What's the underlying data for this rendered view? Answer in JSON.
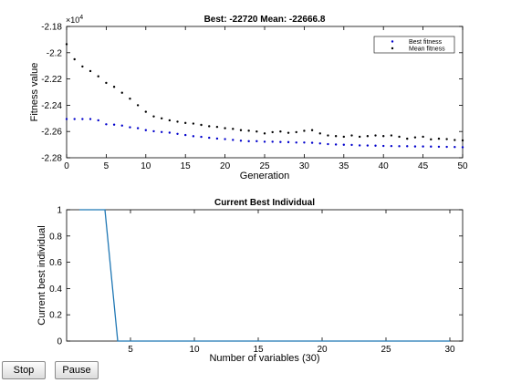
{
  "window": {
    "buttons": {
      "stop_label": "Stop",
      "pause_label": "Pause"
    }
  },
  "chart_data": [
    {
      "type": "scatter",
      "title": "Best: -22720 Mean: -22666.8",
      "xlabel": "Generation",
      "ylabel": "Fitness value",
      "y_multiplier_label": "×10",
      "y_multiplier_exp": "4",
      "xlim": [
        0,
        50
      ],
      "ylim": [
        -2.28,
        -2.18
      ],
      "xticks": [
        "0",
        "5",
        "10",
        "15",
        "20",
        "25",
        "30",
        "35",
        "40",
        "45",
        "50"
      ],
      "yticks": [
        "-2.18",
        "-2.2",
        "-2.22",
        "-2.24",
        "-2.26",
        "-2.28"
      ],
      "legend_position": "top-right",
      "grid": false,
      "x": [
        0,
        1,
        2,
        3,
        4,
        5,
        6,
        7,
        8,
        9,
        10,
        11,
        12,
        13,
        14,
        15,
        16,
        17,
        18,
        19,
        20,
        21,
        22,
        23,
        24,
        25,
        26,
        27,
        28,
        29,
        30,
        31,
        32,
        33,
        34,
        35,
        36,
        37,
        38,
        39,
        40,
        41,
        42,
        43,
        44,
        45,
        46,
        47,
        48,
        49,
        50
      ],
      "series": [
        {
          "name": "Best fitness",
          "color": "#0000cc",
          "values": [
            -2.2505,
            -2.2505,
            -2.2505,
            -2.2505,
            -2.2515,
            -2.2545,
            -2.2548,
            -2.2555,
            -2.2568,
            -2.2575,
            -2.259,
            -2.2598,
            -2.2604,
            -2.2609,
            -2.2618,
            -2.2627,
            -2.2636,
            -2.2641,
            -2.2648,
            -2.2654,
            -2.2658,
            -2.2664,
            -2.267,
            -2.2674,
            -2.2674,
            -2.2678,
            -2.2678,
            -2.268,
            -2.2681,
            -2.2684,
            -2.2684,
            -2.2686,
            -2.2691,
            -2.2696,
            -2.2699,
            -2.2701,
            -2.2702,
            -2.2706,
            -2.2707,
            -2.2708,
            -2.271,
            -2.2711,
            -2.2712,
            -2.2712,
            -2.2714,
            -2.2714,
            -2.2715,
            -2.2716,
            -2.2717,
            -2.2718,
            -2.272
          ]
        },
        {
          "name": "Mean fitness",
          "color": "#000000",
          "values": [
            -2.1935,
            -2.205,
            -2.2105,
            -2.214,
            -2.218,
            -2.223,
            -2.226,
            -2.2305,
            -2.235,
            -2.24,
            -2.245,
            -2.2485,
            -2.25,
            -2.2515,
            -2.2525,
            -2.2535,
            -2.254,
            -2.255,
            -2.256,
            -2.2565,
            -2.2575,
            -2.258,
            -2.259,
            -2.2594,
            -2.26,
            -2.2615,
            -2.2605,
            -2.26,
            -2.261,
            -2.2605,
            -2.2595,
            -2.259,
            -2.2615,
            -2.263,
            -2.2635,
            -2.264,
            -2.263,
            -2.264,
            -2.2635,
            -2.263,
            -2.2635,
            -2.263,
            -2.264,
            -2.2655,
            -2.2645,
            -2.264,
            -2.266,
            -2.2655,
            -2.2658,
            -2.2665,
            -2.2668
          ]
        }
      ]
    },
    {
      "type": "line",
      "title": "Current Best Individual",
      "xlabel": "Number of variables (30)",
      "ylabel": "Current best individual",
      "xlim": [
        0,
        31
      ],
      "ylim": [
        0,
        1
      ],
      "xticks": [
        "5",
        "10",
        "15",
        "20",
        "25",
        "30"
      ],
      "yticks": [
        "0",
        "0.2",
        "0.4",
        "0.6",
        "0.8",
        "1"
      ],
      "grid": false,
      "x": [
        1,
        2,
        3,
        4,
        5,
        6,
        7,
        8,
        9,
        10,
        11,
        12,
        13,
        14,
        15,
        16,
        17,
        18,
        19,
        20,
        21,
        22,
        23,
        24,
        25,
        26,
        27,
        28,
        29,
        30
      ],
      "series": [
        {
          "color": "#1f77b4",
          "values": [
            1,
            1,
            1,
            0,
            0,
            0,
            0,
            0,
            0,
            0,
            0,
            0,
            0,
            0,
            0,
            0,
            0,
            0,
            0,
            0,
            0,
            0,
            0,
            0,
            0,
            0,
            0,
            0,
            0,
            0
          ]
        }
      ]
    }
  ]
}
